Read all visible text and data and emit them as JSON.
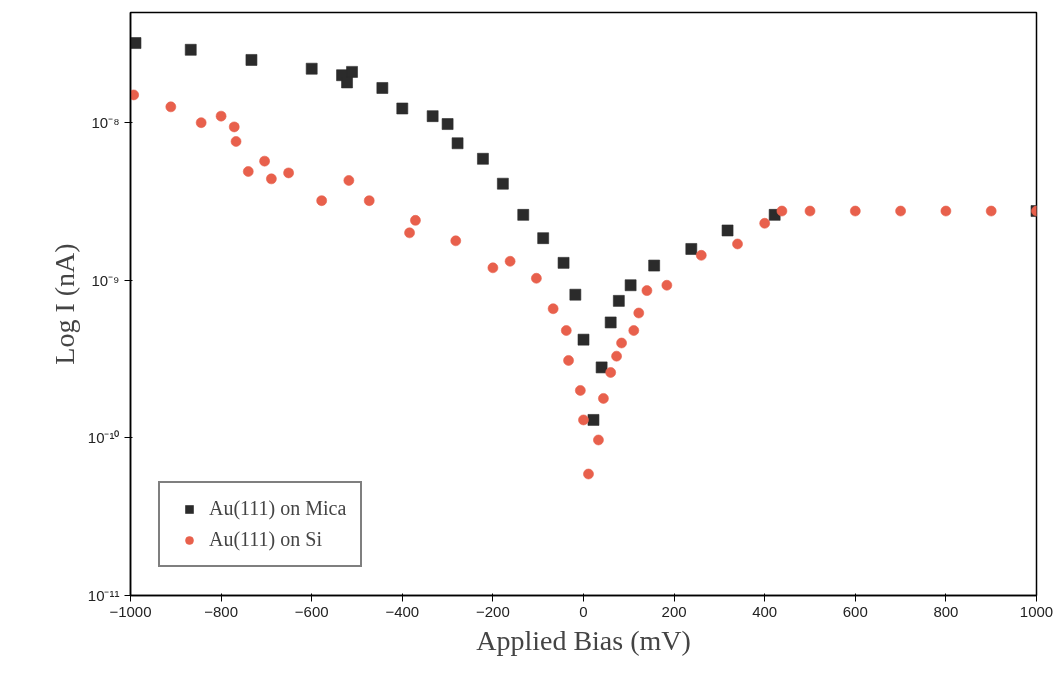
{
  "chart_data": {
    "type": "scatter",
    "xlabel": "Applied Bias (mV)",
    "ylabel": "Log I (nA)",
    "log": true,
    "grid": false,
    "legend": "bottom left",
    "xlim": [
      -1000,
      1000
    ],
    "xticks": [
      -1000,
      -800,
      -600,
      -400,
      -200,
      0,
      200,
      400,
      600,
      800,
      1000
    ],
    "ylim": [
      1e-11,
      5e-08
    ],
    "yticks": [
      {
        "value": 1e-11,
        "label": "10⁻¹¹"
      },
      {
        "value": 1e-10,
        "label": "10⁻¹⁰"
      },
      {
        "value": 1e-09,
        "label": "10⁻⁹"
      },
      {
        "value": 1e-08,
        "label": "10⁻⁸"
      }
    ],
    "series": [
      {
        "name": "Au(111) on Mica",
        "color": "#2b2b2b",
        "marker": "square",
        "x": [
          -989,
          -867,
          -733,
          -600,
          -533,
          -522,
          -511,
          -444,
          -400,
          -333,
          -300,
          -278,
          -222,
          -178,
          -133,
          -89,
          -44,
          -18,
          0,
          22,
          40,
          60,
          78,
          104,
          156,
          238,
          318,
          422,
          500,
          600,
          700,
          800,
          900,
          1000
        ],
        "values": [
          3.2e-08,
          2.9e-08,
          2.5e-08,
          2.2e-08,
          2e-08,
          1.8e-08,
          2.1e-08,
          1.66e-08,
          1.23e-08,
          1.1e-08,
          9.8e-09,
          7.4e-09,
          5.9e-09,
          4.1e-09,
          2.6e-09,
          1.85e-09,
          1.29e-09,
          8.1e-10,
          4.2e-10,
          1.3e-10,
          2.8e-10,
          5.4e-10,
          7.4e-10,
          9.3e-10,
          1.24e-09,
          1.58e-09,
          2.07e-09,
          2.6e-09,
          null,
          null,
          null,
          null,
          null,
          2.75e-09
        ]
      },
      {
        "name": "Au(111) on Si",
        "color": "#e8604c",
        "marker": "circle",
        "x": [
          -993,
          -911,
          -844,
          -800,
          -771,
          -767,
          -740,
          -704,
          -689,
          -651,
          -578,
          -518,
          -473,
          -384,
          -371,
          -282,
          -200,
          -162,
          -104,
          -67,
          -38,
          -33,
          -7,
          0,
          11,
          33,
          44,
          60,
          73,
          84,
          111,
          122,
          140,
          184,
          260,
          340,
          400,
          438,
          500,
          600,
          700,
          800,
          900,
          1000
        ],
        "values": [
          1.5e-08,
          1.26e-08,
          1e-08,
          1.1e-08,
          9.4e-09,
          7.6e-09,
          4.9e-09,
          5.7e-09,
          4.4e-09,
          4.8e-09,
          3.2e-09,
          4.3e-09,
          3.2e-09,
          2e-09,
          2.4e-09,
          1.78e-09,
          1.2e-09,
          1.32e-09,
          1.03e-09,
          6.6e-10,
          4.8e-10,
          3.1e-10,
          2e-10,
          1.3e-10,
          5.9e-11,
          9.7e-11,
          1.78e-10,
          2.6e-10,
          3.3e-10,
          4e-10,
          4.8e-10,
          6.2e-10,
          8.6e-10,
          9.3e-10,
          1.44e-09,
          1.7e-09,
          2.3e-09,
          2.75e-09,
          2.75e-09,
          2.75e-09,
          2.75e-09,
          2.75e-09,
          2.75e-09,
          2.75e-09
        ]
      }
    ]
  }
}
